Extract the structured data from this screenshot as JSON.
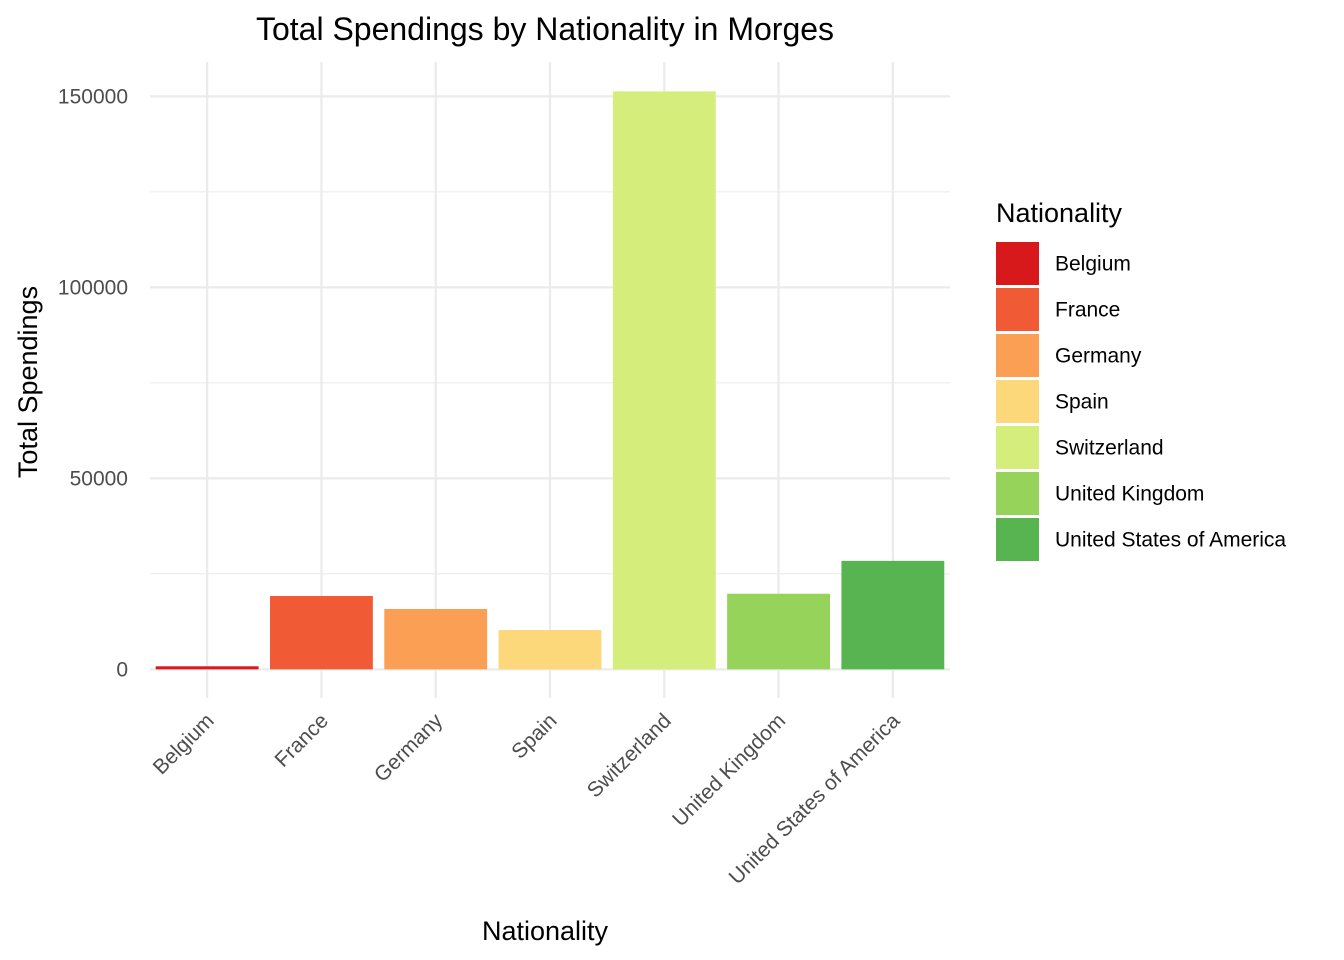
{
  "chart_data": {
    "type": "bar",
    "title": "Total Spendings by Nationality in Morges",
    "xlabel": "Nationality",
    "ylabel": "Total Spendings",
    "categories": [
      "Belgium",
      "France",
      "Germany",
      "Spain",
      "Switzerland",
      "United Kingdom",
      "United States of America"
    ],
    "values": [
      800,
      19200,
      15800,
      10300,
      151300,
      19800,
      28400
    ],
    "colors": [
      "#d7191c",
      "#f05a35",
      "#fb9f55",
      "#fdd87b",
      "#d4ed7b",
      "#96d35a",
      "#58b450"
    ],
    "ylim": [
      -7500,
      159000
    ],
    "yticks": [
      0,
      50000,
      100000,
      150000
    ],
    "ytick_labels": [
      "0",
      "50000",
      "100000",
      "150000"
    ],
    "grid": true,
    "legend": {
      "title": "Nationality",
      "placement": "right"
    }
  }
}
